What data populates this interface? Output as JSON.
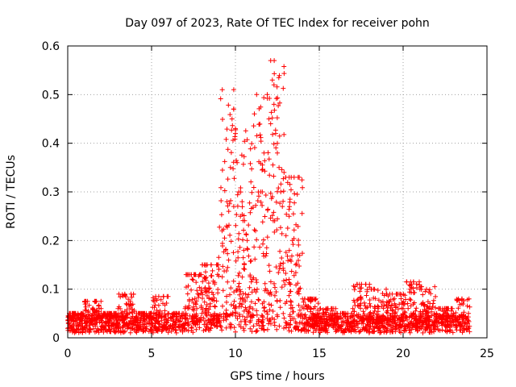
{
  "chart_data": {
    "type": "scatter",
    "title": "Day 097 of 2023, Rate Of TEC Index for receiver pohn",
    "xlabel": "GPS time / hours",
    "ylabel": "ROTI / TECUs",
    "xlim": [
      0,
      25
    ],
    "ylim": [
      0,
      0.6
    ],
    "x_ticks": [
      0,
      5,
      10,
      15,
      20,
      25
    ],
    "y_ticks": [
      0,
      0.1,
      0.2,
      0.3,
      0.4,
      0.5,
      0.6
    ],
    "x_tick_labels": [
      "0",
      "5",
      "10",
      "15",
      "20",
      "25"
    ],
    "y_tick_labels": [
      "0",
      "0.1",
      "0.2",
      "0.3",
      "0.4",
      "0.5",
      "0.6"
    ],
    "grid": true,
    "marker": "+",
    "marker_color": "#ff0000",
    "series": [
      {
        "name": "ROTI",
        "description": "dense cloud of points, mostly 0.01-0.06 TECU/min, storm enhancement between 9.5 and 14 h",
        "x": [
          0.1,
          0.5,
          1.0,
          1.5,
          2.0,
          2.5,
          3.0,
          3.5,
          4.0,
          4.5,
          5.0,
          5.5,
          6.0,
          6.5,
          7.0,
          7.5,
          8.0,
          8.5,
          8.9,
          9.2,
          9.5,
          9.7,
          9.8,
          9.9,
          10.0,
          10.1,
          10.2,
          10.3,
          10.5,
          10.7,
          11.0,
          11.2,
          11.5,
          11.7,
          11.9,
          12.0,
          12.1,
          12.2,
          12.3,
          12.4,
          12.5,
          12.6,
          12.7,
          12.8,
          13.0,
          13.2,
          13.4,
          13.6,
          13.8,
          14.0,
          14.5,
          15.0,
          15.5,
          16.0,
          16.5,
          17.0,
          17.5,
          18.0,
          18.5,
          19.0,
          19.5,
          20.0,
          20.5,
          21.0,
          21.5,
          22.0,
          22.5,
          23.0,
          23.5,
          23.9,
          0.8,
          1.6,
          3.4,
          5.7,
          7.9,
          9.6,
          10.4,
          11.3,
          12.2,
          12.9,
          13.5,
          17.4,
          18.3,
          20.2,
          21.1,
          23.3,
          9.9,
          10.0,
          11.6,
          12.3,
          12.1,
          12.5
        ],
        "y": [
          0.03,
          0.04,
          0.035,
          0.05,
          0.04,
          0.045,
          0.06,
          0.05,
          0.04,
          0.045,
          0.05,
          0.055,
          0.04,
          0.05,
          0.06,
          0.045,
          0.05,
          0.07,
          0.15,
          0.22,
          0.28,
          0.35,
          0.45,
          0.51,
          0.43,
          0.36,
          0.3,
          0.25,
          0.18,
          0.2,
          0.12,
          0.22,
          0.3,
          0.38,
          0.5,
          0.45,
          0.57,
          0.53,
          0.48,
          0.42,
          0.38,
          0.35,
          0.3,
          0.27,
          0.33,
          0.25,
          0.2,
          0.15,
          0.1,
          0.08,
          0.06,
          0.05,
          0.06,
          0.05,
          0.05,
          0.06,
          0.08,
          0.07,
          0.06,
          0.09,
          0.07,
          0.06,
          0.11,
          0.1,
          0.06,
          0.05,
          0.06,
          0.05,
          0.07,
          0.05,
          0.05,
          0.075,
          0.09,
          0.085,
          0.13,
          0.26,
          0.28,
          0.1,
          0.29,
          0.34,
          0.33,
          0.11,
          0.1,
          0.115,
          0.105,
          0.08,
          0.47,
          0.42,
          0.3,
          0.52,
          0.44,
          0.4
        ]
      }
    ]
  }
}
